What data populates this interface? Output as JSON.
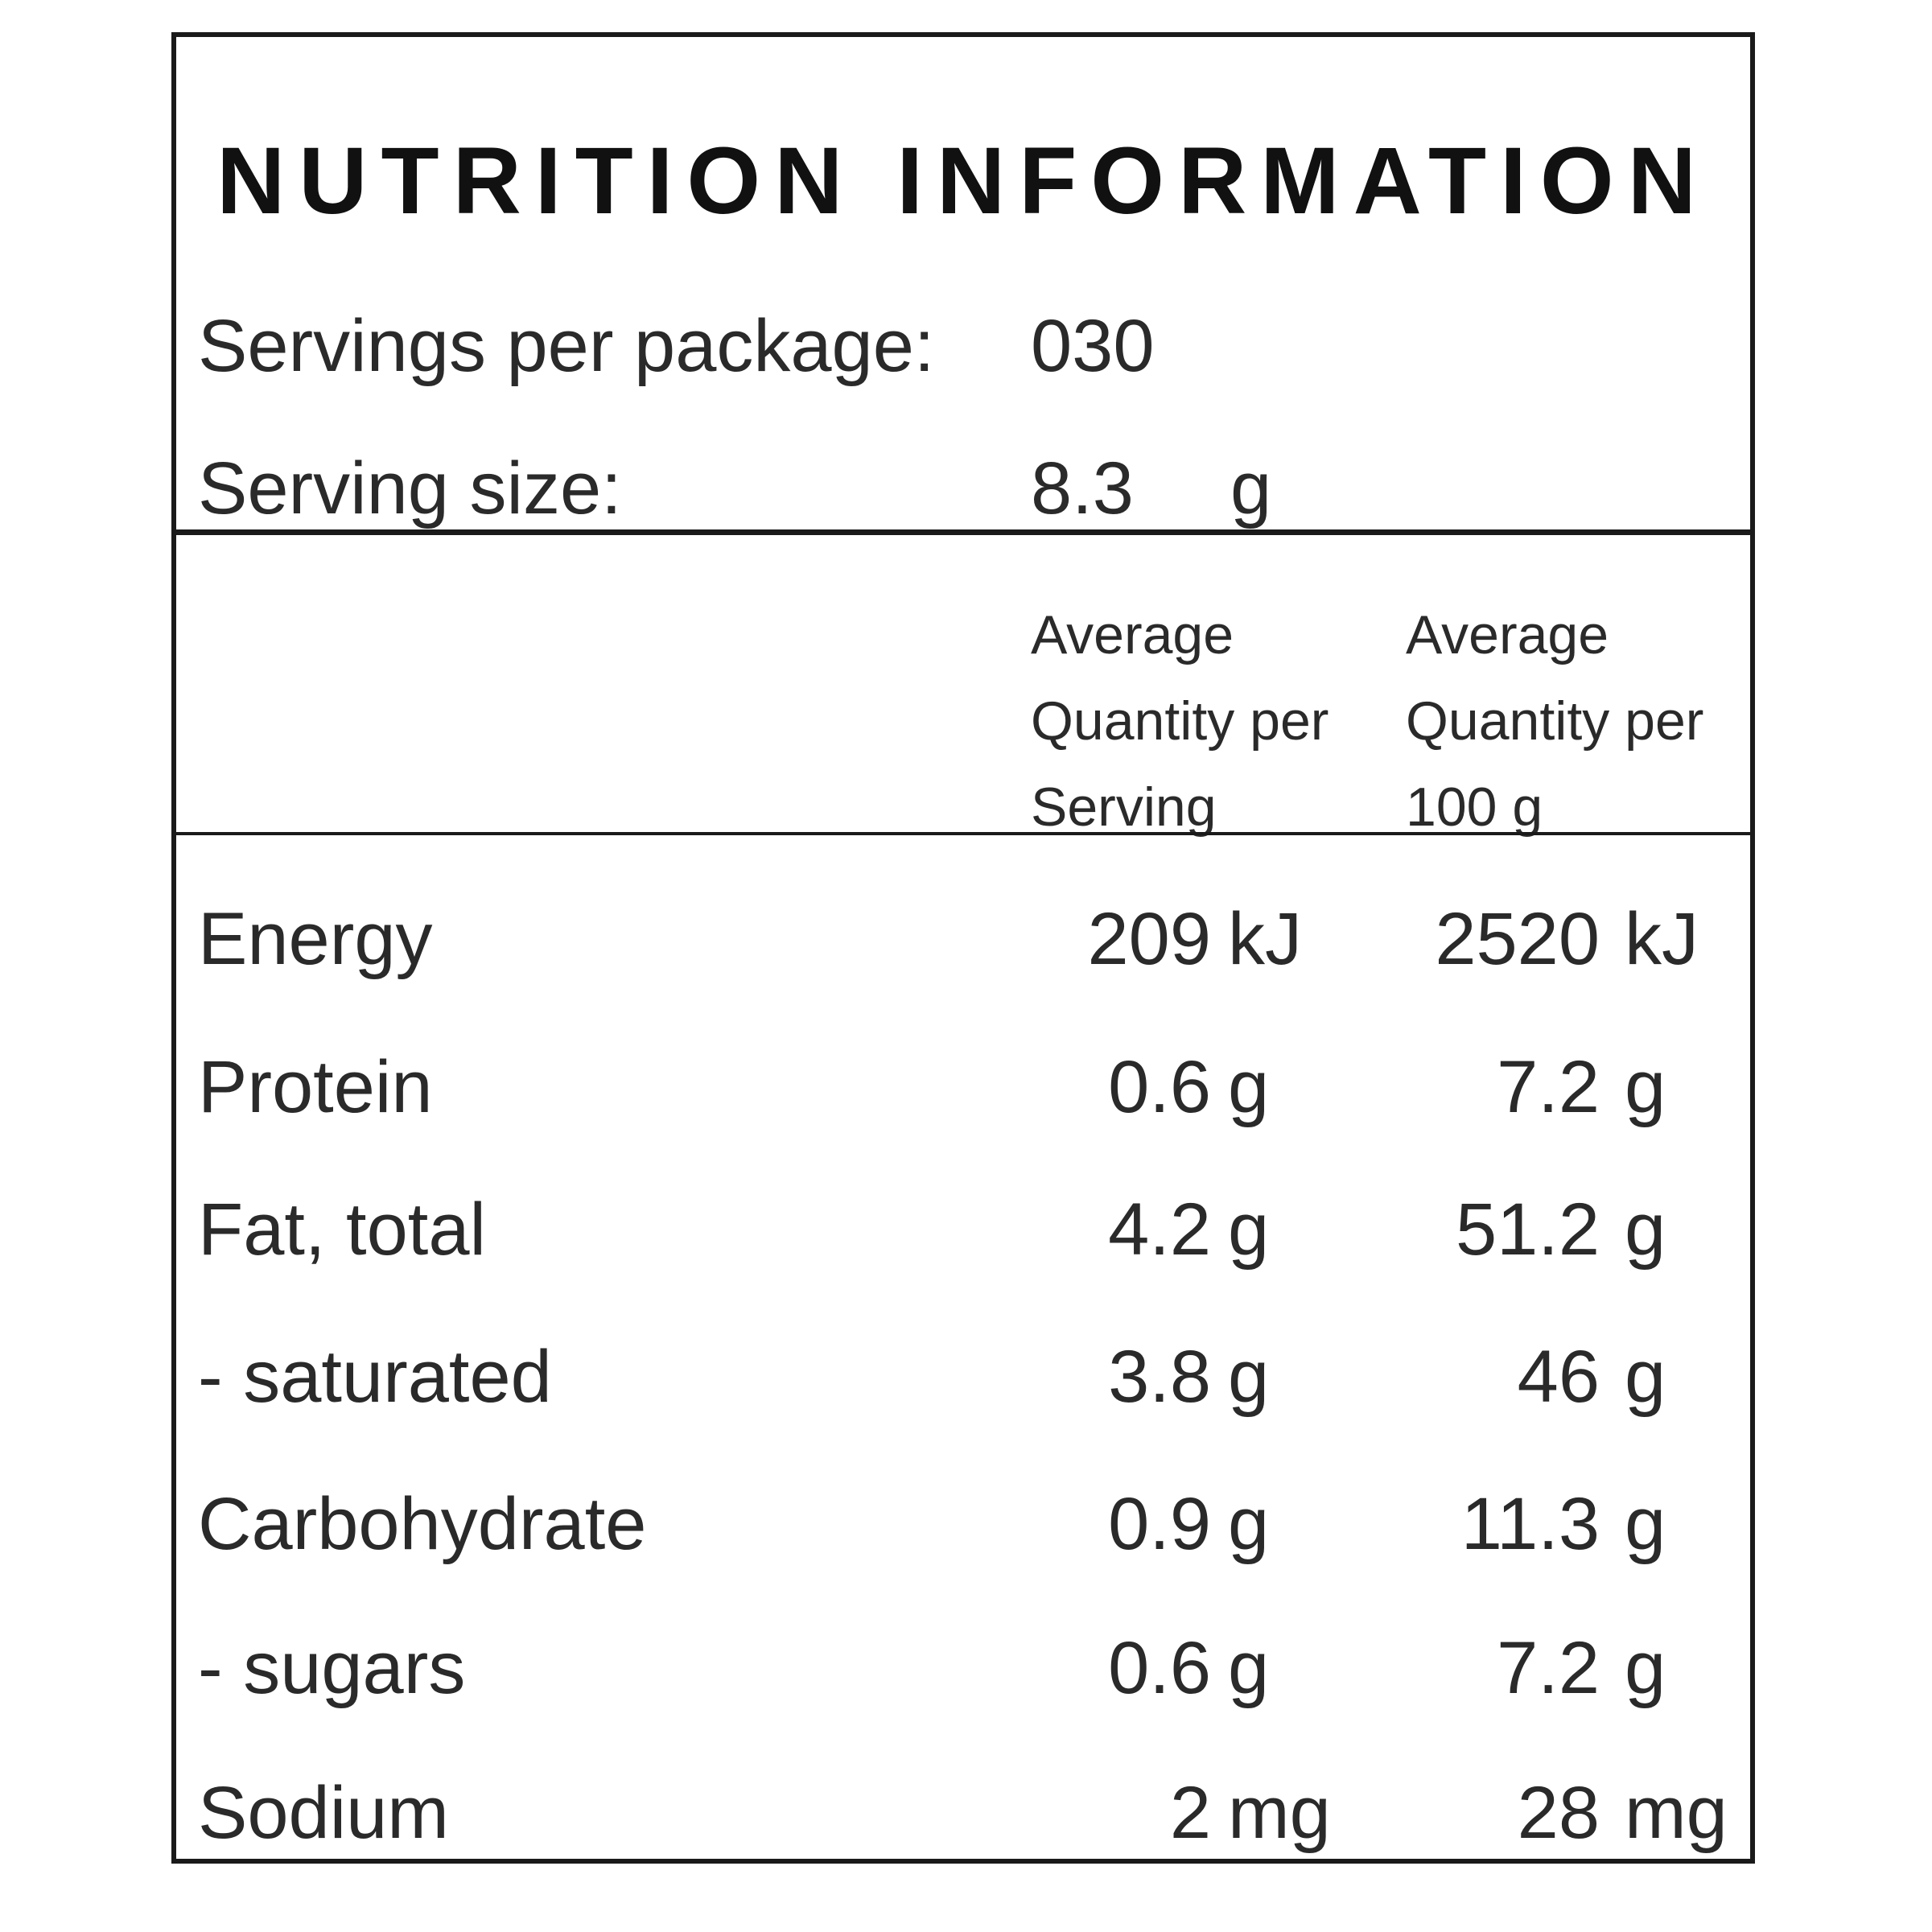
{
  "panel": {
    "title": "NUTRITION INFORMATION",
    "servings_label": "Servings per package:",
    "servings_value": "030",
    "serving_size_label": "Serving size:",
    "serving_size_value": "8.3",
    "serving_size_unit": "g"
  },
  "columns": {
    "per_serving": [
      "Average",
      "Quantity per",
      "Serving"
    ],
    "per_100g": [
      "Average",
      "Quantity per",
      "100 g"
    ]
  },
  "rows": [
    {
      "name": "Energy",
      "serving_value": "209",
      "serving_unit": "kJ",
      "per100_value": "2520",
      "per100_unit": "kJ"
    },
    {
      "name": "Protein",
      "serving_value": "0.6",
      "serving_unit": "g",
      "per100_value": "7.2",
      "per100_unit": "g"
    },
    {
      "name": "Fat, total",
      "serving_value": "4.2",
      "serving_unit": "g",
      "per100_value": "51.2",
      "per100_unit": "g"
    },
    {
      "name": "- saturated",
      "serving_value": "3.8",
      "serving_unit": "g",
      "per100_value": "46",
      "per100_unit": "g"
    },
    {
      "name": "Carbohydrate",
      "serving_value": "0.9",
      "serving_unit": "g",
      "per100_value": "11.3",
      "per100_unit": "g"
    },
    {
      "name": "- sugars",
      "serving_value": "0.6",
      "serving_unit": "g",
      "per100_value": "7.2",
      "per100_unit": "g"
    },
    {
      "name": "Sodium",
      "serving_value": "2",
      "serving_unit": "mg",
      "per100_value": "28",
      "per100_unit": "mg"
    }
  ]
}
